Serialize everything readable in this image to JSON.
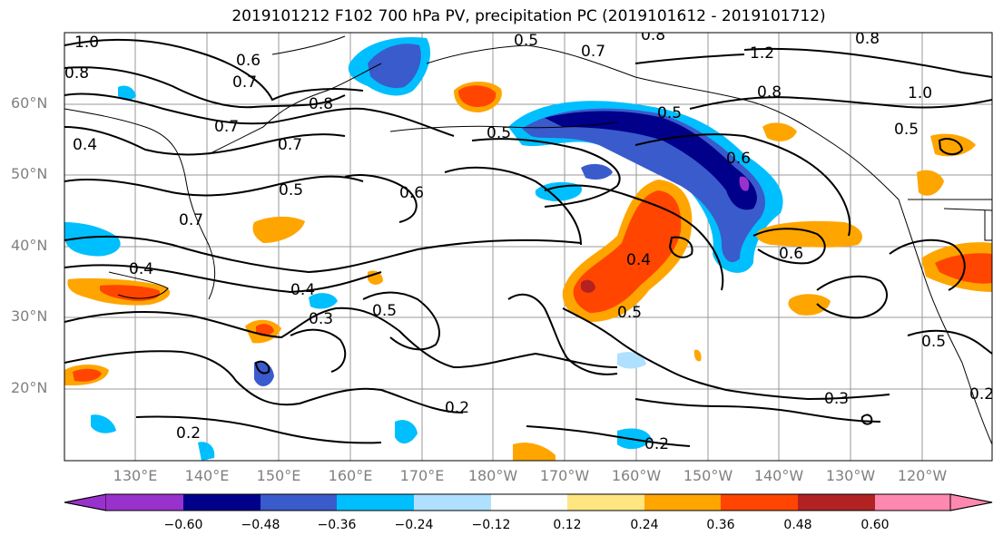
{
  "title": "2019101212 F102 700 hPa PV, precipitation PC (2019101612 - 2019101712)",
  "lat_labels": [
    "60°N",
    "50°N",
    "40°N",
    "30°N",
    "20°N"
  ],
  "lon_labels": [
    "130°E",
    "140°E",
    "150°E",
    "160°E",
    "170°E",
    "180°W",
    "170°W",
    "160°W",
    "150°W",
    "140°W",
    "130°W",
    "120°W"
  ],
  "colorbar": {
    "ticks": [
      "−0.60",
      "−0.48",
      "−0.36",
      "−0.24",
      "−0.12",
      "0.12",
      "0.24",
      "0.36",
      "0.48",
      "0.60"
    ],
    "colors": [
      "#9932cc",
      "#00008b",
      "#3a5bcc",
      "#00bfff",
      "#b0e0ff",
      "#ffffff",
      "#ffe680",
      "#ffa500",
      "#ff4500",
      "#b22222",
      "#ff88b0"
    ]
  },
  "contour_labels": [
    "1.0",
    "0.8",
    "0.6",
    "0.7",
    "0.7",
    "0.8",
    "0.7",
    "0.4",
    "0.7",
    "0.5",
    "0.7",
    "0.4",
    "0.5",
    "0.6",
    "0.5",
    "0.8",
    "0.5",
    "1.2",
    "0.8",
    "0.8",
    "1.0",
    "0.5",
    "0.6",
    "0.4",
    "0.6",
    "0.4",
    "0.5",
    "0.3",
    "0.5",
    "0.3",
    "0.2",
    "0.2",
    "0.2",
    "0.5",
    "0.2"
  ]
}
